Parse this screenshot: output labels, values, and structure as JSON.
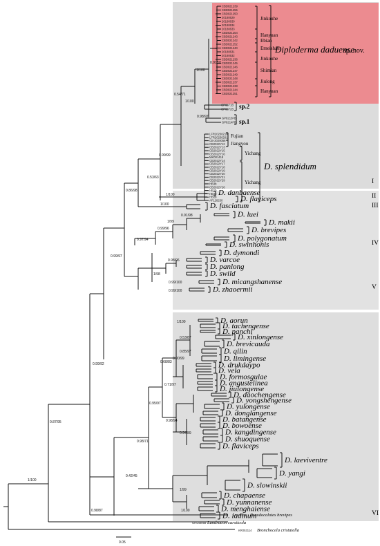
{
  "colors": {
    "highlight": "#ef7c82",
    "panel": "#dcdcdc",
    "line": "#111111"
  },
  "novel_species": {
    "name": "Diploderma daduense",
    "suffix": "sp. nov."
  },
  "samples_novel": [
    "CBD021239",
    "CBD021255",
    "CBD021250",
    "20180629",
    "20180630",
    "20180634",
    "20180633",
    "CBD021254",
    "CBD021243",
    "CBD021242",
    "CBD021252",
    "CBD021240",
    "20180631",
    "20180632",
    "CBD021236",
    "CBD021245",
    "CBD021246",
    "CBD021247",
    "CBD021249",
    "CBD021248",
    "CBD021237",
    "CBD021238",
    "CBD021244",
    "CBD021251"
  ],
  "localities_novel": [
    "Jinkouhe",
    "Hanyuan",
    "Ebian",
    "Emeishan",
    "Jinkouhe",
    "Shimian",
    "Jiulong",
    "Hanyuan"
  ],
  "sp2_samples": [
    "GP6871B",
    "GP6872B"
  ],
  "sp1_samples": [
    "GP8213FB",
    "GP8214FB"
  ],
  "splendidum_samples": [
    "LFR20230218",
    "LFR20230201",
    "CB-2020056",
    "CB2022Y12",
    "CB2022Y13",
    "CB2022Y15",
    "CB2022Y16",
    "MK001418",
    "CB2022Y14",
    "CB2022Y17",
    "CB2022Y18",
    "CB2022Y19",
    "CB2022Y20",
    "CB2022Y21",
    "CB2022Y29",
    "HB3b",
    "CB2022Y26",
    "HB1b",
    "HB4b",
    "HB2b",
    "AF128230"
  ],
  "localities_splendidum": [
    "Fujian",
    "Jiangyou",
    "Yichang",
    "Yichang"
  ],
  "labels": {
    "sp1": "sp.1",
    "sp2": "sp.2",
    "splendidum": "D. splendidum",
    "danbaense": "D. danbaense",
    "flaviceps": "D. flaviceps",
    "fasciatum": "D. fasciatum",
    "luei": "D. luei",
    "makii": "D. makii",
    "brevipes": "D. brevipes",
    "polygonatum": "D. polygonatum",
    "swinhonis": "D. swinhonis",
    "dymondi": "D. dymondi",
    "varcoe": "D. varcoe",
    "panlong": "D. panlong",
    "swild": "D. swild",
    "micangshanense": "D. micangshanense",
    "zhaoermii": "D. zhaoermii",
    "aorun": "D. aorun",
    "tachengense": "D. tachengense",
    "panchi": "D. panchi",
    "xinlongense": "D. xinlongense",
    "brevicauda": "D. brevicauda",
    "qilin": "D. qilin",
    "limingense": "D. limingense",
    "drukdaypo": "D. drukdaypo",
    "vela": "D. vela",
    "formosgulae": "D. formosgulae",
    "angustelinea": "D. angustelinea",
    "jiulongense": "D. jiulongense",
    "daochengense": "D. daochengense",
    "yongshengense": "D. yongshengense",
    "yulongense": "D. yulongense",
    "donglangense": "D. donglangense",
    "batangense": "D. batangense",
    "bowoense": "D. bowoense",
    "kangdingense": "D. kangdingense",
    "shuoquense": "D. shuoquense",
    "flaviceps2": "D. flaviceps",
    "laeviventre": "D. laeviventre",
    "yangi": "D. yangi",
    "slowinskii": "D. slowinskii",
    "chapaense": "D. chapaense",
    "yunnanense": "D. yunnanense",
    "menghaiense": "D. menghaiense",
    "iadinum": "D. iadinum"
  },
  "outgroups": [
    {
      "acc": "AF128502",
      "name": "Pseudocalotes brevipes"
    },
    {
      "acc": "OR544068",
      "name": "Laodracon carsticola"
    },
    {
      "acc": "KR053114",
      "name": "Bronchocela cristatella"
    }
  ],
  "clades": [
    "I",
    "II",
    "III",
    "IV",
    "V",
    "VI"
  ],
  "support": {
    "s1": "1/100",
    "s2": "0.91/91",
    "s3": "0.54/71",
    "s4": "1/100",
    "s5": "0.98/97",
    "s6": "0.99/99",
    "s7": "0.53/63",
    "s8": "1/100",
    "s9": "0.86/98",
    "s10": "1/100",
    "s11": "0.99/97",
    "s12": "1/99",
    "s13": "0.91/98",
    "s14": "0.99/96",
    "s15": "0.97/94",
    "s16": "1/100",
    "s17": "1/98",
    "s18": "0.98/96",
    "s19": "0.99/100",
    "s20": "0.99/100",
    "s21": "0.99/92",
    "s22": "0.87/95",
    "s23": "1/100",
    "s24": "0.98/71",
    "s25": "0.42/45",
    "s26": "0.98/87",
    "s27": "0.71/97",
    "s28": "0.95/97",
    "s29": "0.68/83",
    "s30": "0.53/87",
    "s31": "0.85/97",
    "s32": "0.90/99",
    "s33": "1/100",
    "s34": "0.98/94",
    "s35": "1/99",
    "s36": "0.94/89",
    "s37": "1/100"
  },
  "scale_label": "0.05"
}
